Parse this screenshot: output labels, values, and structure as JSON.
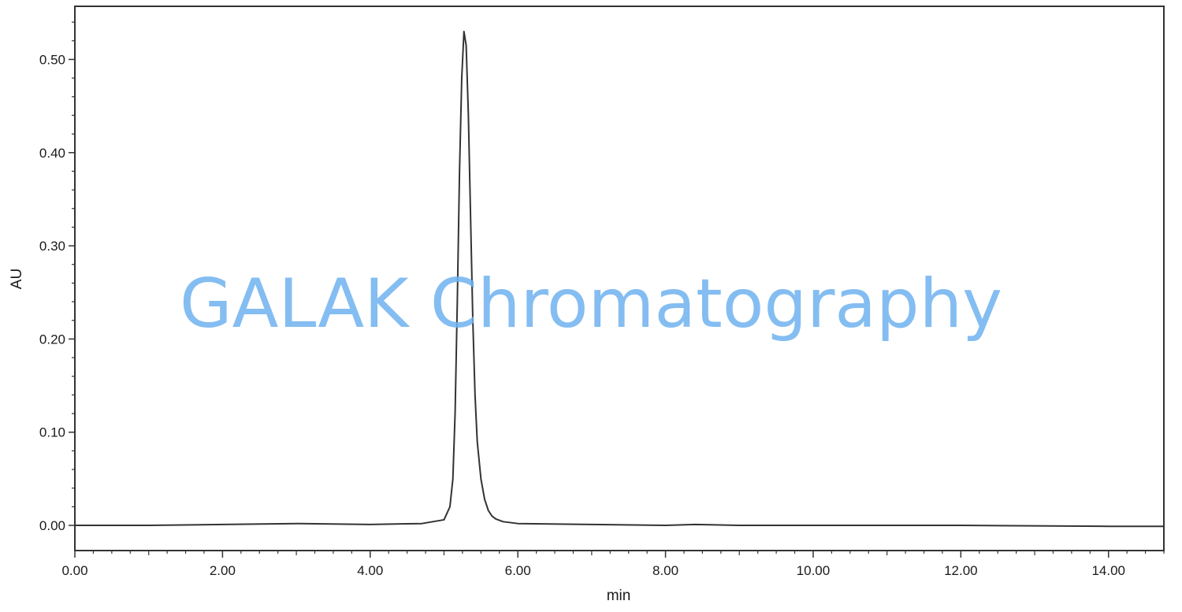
{
  "chart_data": {
    "type": "line",
    "title": "",
    "xlabel": "min",
    "ylabel": "AU",
    "xlim": [
      0.0,
      14.75
    ],
    "ylim": [
      -0.027,
      0.557
    ],
    "x_ticks": [
      0,
      2,
      4,
      6,
      8,
      10,
      12,
      14
    ],
    "x_tick_labels": [
      "0.00",
      "2.00",
      "4.00",
      "6.00",
      "8.00",
      "10.00",
      "12.00",
      "14.00"
    ],
    "y_ticks": [
      0,
      0.1,
      0.2,
      0.3,
      0.4,
      0.5
    ],
    "y_tick_labels": [
      "0.00",
      "0.10",
      "0.20",
      "0.30",
      "0.40",
      "0.50"
    ],
    "grid": false,
    "series": [
      {
        "color": "#333333",
        "x": [
          0.0,
          1.0,
          2.0,
          3.0,
          4.0,
          4.7,
          5.0,
          5.08,
          5.12,
          5.15,
          5.18,
          5.21,
          5.24,
          5.27,
          5.3,
          5.33,
          5.36,
          5.39,
          5.42,
          5.45,
          5.5,
          5.55,
          5.6,
          5.65,
          5.7,
          5.8,
          6.0,
          7.0,
          8.0,
          8.4,
          9.0,
          10.0,
          12.0,
          14.0,
          14.75
        ],
        "y": [
          0.0,
          0.0,
          0.001,
          0.002,
          0.001,
          0.002,
          0.006,
          0.02,
          0.05,
          0.12,
          0.24,
          0.38,
          0.48,
          0.53,
          0.515,
          0.44,
          0.33,
          0.22,
          0.14,
          0.09,
          0.05,
          0.028,
          0.016,
          0.01,
          0.007,
          0.004,
          0.002,
          0.001,
          0.0,
          0.001,
          0.0,
          0.0,
          0.0,
          -0.001,
          -0.001
        ]
      }
    ]
  },
  "watermark": {
    "text": "GALAK Chromatography",
    "color": "#6fb1ee"
  }
}
